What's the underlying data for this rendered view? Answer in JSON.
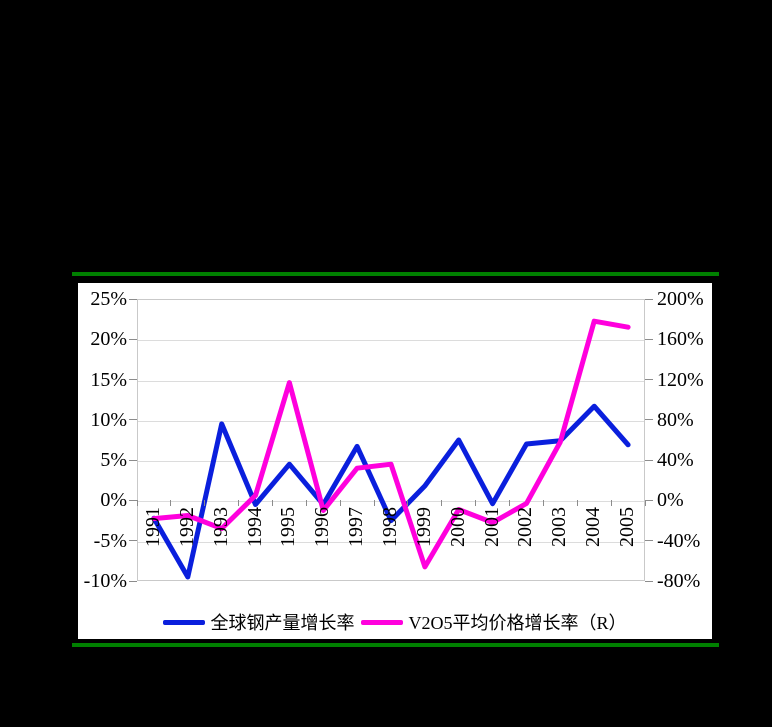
{
  "page": {
    "background_color": "#000000",
    "panel_color": "#ffffff",
    "accent_bar_color": "#008000"
  },
  "chart_data": {
    "type": "line",
    "title": "",
    "categories": [
      "1991",
      "1992",
      "1993",
      "1994",
      "1995",
      "1996",
      "1997",
      "1998",
      "1999",
      "2000",
      "2001",
      "2002",
      "2003",
      "2004",
      "2005"
    ],
    "series": [
      {
        "name": "全球钢产量增长率",
        "axis": "left",
        "color": "#0a1fdd",
        "values": [
          -2.2,
          -9.5,
          9.5,
          -0.5,
          4.5,
          -0.5,
          6.7,
          -2.5,
          1.8,
          7.5,
          -0.4,
          7.0,
          7.4,
          11.7,
          6.9
        ]
      },
      {
        "name": "V2O5平均价格增长率（R）",
        "axis": "right",
        "color": "#ff00dd",
        "values": [
          -18,
          -15,
          -28,
          5,
          117,
          -10,
          32,
          36,
          -66,
          -9,
          -22,
          -3,
          58,
          178,
          172
        ]
      }
    ],
    "left_axis": {
      "tick_labels": [
        "25%",
        "20%",
        "15%",
        "10%",
        "5%",
        "0%",
        "-5%",
        "-10%"
      ],
      "max": 25,
      "min": -10,
      "step": 5
    },
    "right_axis": {
      "tick_labels": [
        "200%",
        "160%",
        "120%",
        "80%",
        "40%",
        "0%",
        "-40%",
        "-80%"
      ],
      "max": 200,
      "min": -80,
      "step": 40
    },
    "grid": true,
    "legend_position": "bottom"
  },
  "legend": {
    "items": [
      {
        "label": "全球钢产量增长率",
        "color": "#0a1fdd"
      },
      {
        "label": "V2O5平均价格增长率（R）",
        "color": "#ff00dd"
      }
    ]
  }
}
